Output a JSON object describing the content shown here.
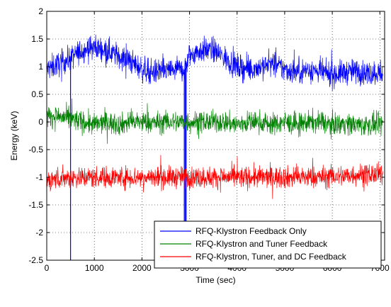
{
  "chart_data": {
    "type": "line",
    "title": "",
    "xlabel": "Time (sec)",
    "ylabel": "Energy (keV)",
    "xlim": [
      0,
      7100
    ],
    "ylim": [
      -2.5,
      2
    ],
    "xticks": [
      0,
      1000,
      2000,
      3000,
      4000,
      5000,
      6000,
      7000
    ],
    "yticks": [
      -2.5,
      -2,
      -1.5,
      -1,
      -0.5,
      0,
      0.5,
      1,
      1.5,
      2
    ],
    "xtick_labels": [
      "0",
      "1000",
      "2000",
      "3000",
      "4000",
      "5000",
      "6000",
      "7000"
    ],
    "ytick_labels": [
      "-2.5",
      "-2",
      "-1.5",
      "-1",
      "-0.5",
      "0",
      "0.5",
      "1",
      "1.5",
      "2"
    ],
    "grid": true,
    "legend_position": "bottom-right",
    "series": [
      {
        "name": "RFQ-Klystron Feedback Only",
        "color": "#0000ff",
        "noise_amplitude": 0.16,
        "x": [
          0,
          250,
          500,
          750,
          1000,
          1250,
          1500,
          1750,
          2000,
          2250,
          2500,
          2750,
          2900,
          3000,
          3250,
          3500,
          3750,
          4000,
          4250,
          4500,
          4750,
          5000,
          5250,
          5500,
          5750,
          6000,
          6250,
          6500,
          6750,
          7000
        ],
        "y": [
          0.95,
          1.05,
          1.15,
          1.3,
          1.35,
          1.3,
          1.2,
          1.1,
          0.95,
          0.9,
          0.92,
          0.95,
          0.95,
          1.2,
          1.3,
          1.3,
          1.15,
          1.0,
          0.95,
          1.0,
          1.05,
          0.95,
          0.9,
          0.95,
          0.9,
          0.85,
          0.9,
          0.92,
          0.88,
          0.9
        ],
        "spikes": [
          {
            "x": 500,
            "y_min": -2.5
          },
          {
            "x": 2890,
            "y_min": -2.5
          },
          {
            "x": 2910,
            "y_min": -2.5
          },
          {
            "x": 2930,
            "y_min": -2.5
          }
        ]
      },
      {
        "name": "RFQ-Klystron and Tuner Feedback",
        "color": "#008000",
        "noise_amplitude": 0.14,
        "x": [
          0,
          250,
          500,
          750,
          1000,
          1250,
          1500,
          1750,
          2000,
          2250,
          2500,
          2750,
          3000,
          3250,
          3500,
          3750,
          4000,
          4250,
          4500,
          4750,
          5000,
          5250,
          5500,
          5750,
          6000,
          6250,
          6500,
          6750,
          7000
        ],
        "y": [
          0.1,
          0.1,
          0.05,
          0.0,
          -0.05,
          0.0,
          -0.05,
          0.0,
          0.0,
          -0.02,
          0.0,
          0.0,
          0.0,
          0.0,
          0.0,
          0.0,
          -0.05,
          0.0,
          0.0,
          -0.05,
          0.0,
          -0.05,
          0.0,
          0.0,
          -0.05,
          -0.02,
          -0.05,
          -0.05,
          -0.05
        ]
      },
      {
        "name": "RFQ-Klystron, Tuner, and DC Feedback",
        "color": "#ff0000",
        "noise_amplitude": 0.14,
        "x": [
          0,
          250,
          500,
          750,
          1000,
          1250,
          1500,
          1750,
          2000,
          2250,
          2500,
          2750,
          3000,
          3250,
          3500,
          3750,
          4000,
          4250,
          4500,
          4750,
          5000,
          5250,
          5500,
          5750,
          6000,
          6250,
          6500,
          6750,
          7000
        ],
        "y": [
          -1.05,
          -1.02,
          -1.0,
          -1.0,
          -1.0,
          -1.0,
          -1.0,
          -1.0,
          -1.0,
          -1.0,
          -1.0,
          -1.0,
          -1.0,
          -1.0,
          -1.0,
          -1.0,
          -1.0,
          -1.0,
          -1.0,
          -1.0,
          -1.0,
          -1.0,
          -1.0,
          -1.0,
          -0.98,
          -0.98,
          -0.95,
          -0.95,
          -0.95
        ]
      }
    ]
  }
}
